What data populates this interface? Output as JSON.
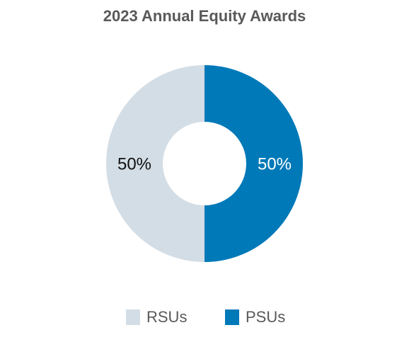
{
  "chart_data": {
    "type": "donut",
    "title": "2023 Annual Equity Awards",
    "categories": [
      "RSUs",
      "PSUs"
    ],
    "values": [
      50,
      50
    ],
    "value_labels": [
      "50%",
      "50%"
    ],
    "colors": [
      "#d3dde5",
      "#0079b8"
    ],
    "label_colors": [
      "#111111",
      "#ffffff"
    ]
  }
}
